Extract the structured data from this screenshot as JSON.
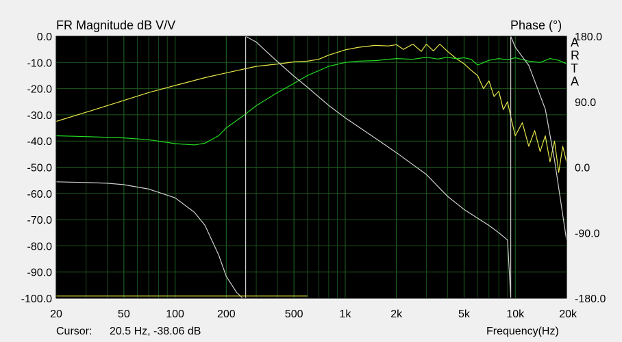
{
  "chart_data": {
    "type": "line",
    "title": "FR Magnitude dB V/V",
    "right_title": "Phase (°)",
    "watermark_letters": [
      "A",
      "R",
      "T",
      "A"
    ],
    "xlabel": "Frequency(Hz)",
    "x_scale": "log",
    "xlim": [
      20,
      20000
    ],
    "ylim": [
      -100,
      0
    ],
    "phase_ylim": [
      -180,
      180
    ],
    "grid": true,
    "x_ticks": [
      {
        "v": 20,
        "label": "20"
      },
      {
        "v": 50,
        "label": "50"
      },
      {
        "v": 100,
        "label": "100"
      },
      {
        "v": 200,
        "label": "200"
      },
      {
        "v": 500,
        "label": "500"
      },
      {
        "v": 1000,
        "label": "1k"
      },
      {
        "v": 2000,
        "label": "2k"
      },
      {
        "v": 5000,
        "label": "5k"
      },
      {
        "v": 10000,
        "label": "10k"
      },
      {
        "v": 20000,
        "label": "20k"
      }
    ],
    "y_ticks": [
      {
        "v": 0,
        "label": "0.0"
      },
      {
        "v": -10,
        "label": "-10.0"
      },
      {
        "v": -20,
        "label": "-20.0"
      },
      {
        "v": -30,
        "label": "-30.0"
      },
      {
        "v": -40,
        "label": "-40.0"
      },
      {
        "v": -50,
        "label": "-50.0"
      },
      {
        "v": -60,
        "label": "-60.0"
      },
      {
        "v": -70,
        "label": "-70.0"
      },
      {
        "v": -80,
        "label": "-80.0"
      },
      {
        "v": -90,
        "label": "-90.0"
      },
      {
        "v": -100,
        "label": "-100.0"
      }
    ],
    "phase_ticks": [
      {
        "v": 180,
        "label": "180.0"
      },
      {
        "v": 90,
        "label": "90.0"
      },
      {
        "v": 0,
        "label": "0.0"
      },
      {
        "v": -90,
        "label": "-90.0"
      },
      {
        "v": -180,
        "label": "-180.0"
      }
    ],
    "series": [
      {
        "id": "yellow-magnitude",
        "color": "#e6e64a",
        "axis": "magnitude",
        "x": [
          20,
          30,
          50,
          70,
          100,
          150,
          200,
          300,
          400,
          500,
          600,
          700,
          800,
          1000,
          1200,
          1500,
          1800,
          2000,
          2200,
          2500,
          2800,
          3000,
          3300,
          3600,
          4000,
          4500,
          5000,
          5500,
          6000,
          6500,
          7000,
          7500,
          8000,
          8500,
          9000,
          9500,
          10000,
          11000,
          12000,
          13000,
          14000,
          15000,
          16000,
          17000,
          18000,
          19000,
          20000
        ],
        "y": [
          -32.5,
          -29.0,
          -24.5,
          -21.5,
          -18.8,
          -15.8,
          -14.0,
          -11.5,
          -10.6,
          -9.8,
          -9.5,
          -8.8,
          -7.2,
          -5.2,
          -4.2,
          -3.5,
          -3.7,
          -3.2,
          -5.0,
          -3.0,
          -5.8,
          -3.0,
          -5.6,
          -3.0,
          -5.8,
          -8.5,
          -10.5,
          -13.0,
          -15.0,
          -20.0,
          -17.0,
          -23.0,
          -21.0,
          -28.0,
          -25.0,
          -32.0,
          -38.0,
          -33.0,
          -42.0,
          -36.0,
          -44.0,
          -38.0,
          -48.0,
          -40.0,
          -52.0,
          -42.0,
          -48.0
        ]
      },
      {
        "id": "green-magnitude",
        "color": "#22dd22",
        "axis": "magnitude",
        "x": [
          20,
          30,
          50,
          70,
          100,
          130,
          150,
          180,
          200,
          250,
          300,
          400,
          500,
          600,
          800,
          1000,
          1200,
          1500,
          2000,
          2500,
          3000,
          3500,
          4000,
          4500,
          5000,
          5500,
          6000,
          7000,
          8000,
          9000,
          10000,
          12000,
          14000,
          16000,
          18000,
          20000
        ],
        "y": [
          -38.0,
          -38.3,
          -38.8,
          -39.5,
          -41.0,
          -41.5,
          -40.8,
          -38.0,
          -35.0,
          -30.5,
          -26.5,
          -21.5,
          -18.0,
          -15.0,
          -11.5,
          -10.0,
          -9.5,
          -9.3,
          -8.5,
          -8.8,
          -8.0,
          -8.7,
          -8.0,
          -8.6,
          -8.2,
          -8.8,
          -11.0,
          -9.2,
          -8.5,
          -9.0,
          -8.2,
          -9.5,
          -10.0,
          -8.5,
          -9.2,
          -10.5
        ]
      },
      {
        "id": "gray-phase",
        "color": "#cfcfcf",
        "axis": "phase",
        "x": [
          20,
          30,
          40,
          50,
          70,
          100,
          130,
          150,
          180,
          200,
          230,
          250,
          260,
          260,
          300,
          400,
          500,
          600,
          800,
          1000,
          1500,
          2000,
          3000,
          4000,
          5000,
          6000,
          7000,
          8000,
          9000,
          9400,
          9400,
          10000,
          12000,
          15000,
          17000,
          20000
        ],
        "y": [
          -20,
          -21,
          -22,
          -24,
          -30,
          -42,
          -62,
          -80,
          -120,
          -150,
          -172,
          -180,
          -180,
          180,
          172,
          145,
          125,
          110,
          85,
          68,
          40,
          20,
          -10,
          -40,
          -58,
          -70,
          -80,
          -90,
          -100,
          -180,
          180,
          165,
          140,
          80,
          10,
          -100
        ]
      },
      {
        "id": "yellow-phase-low",
        "color": "#e6e64a",
        "axis": "phase",
        "x": [
          20,
          600
        ],
        "y": [
          -177,
          -177
        ]
      }
    ]
  },
  "footer": {
    "cursor_label": "Cursor:",
    "cursor_value": "20.5 Hz, -38.06 dB"
  }
}
